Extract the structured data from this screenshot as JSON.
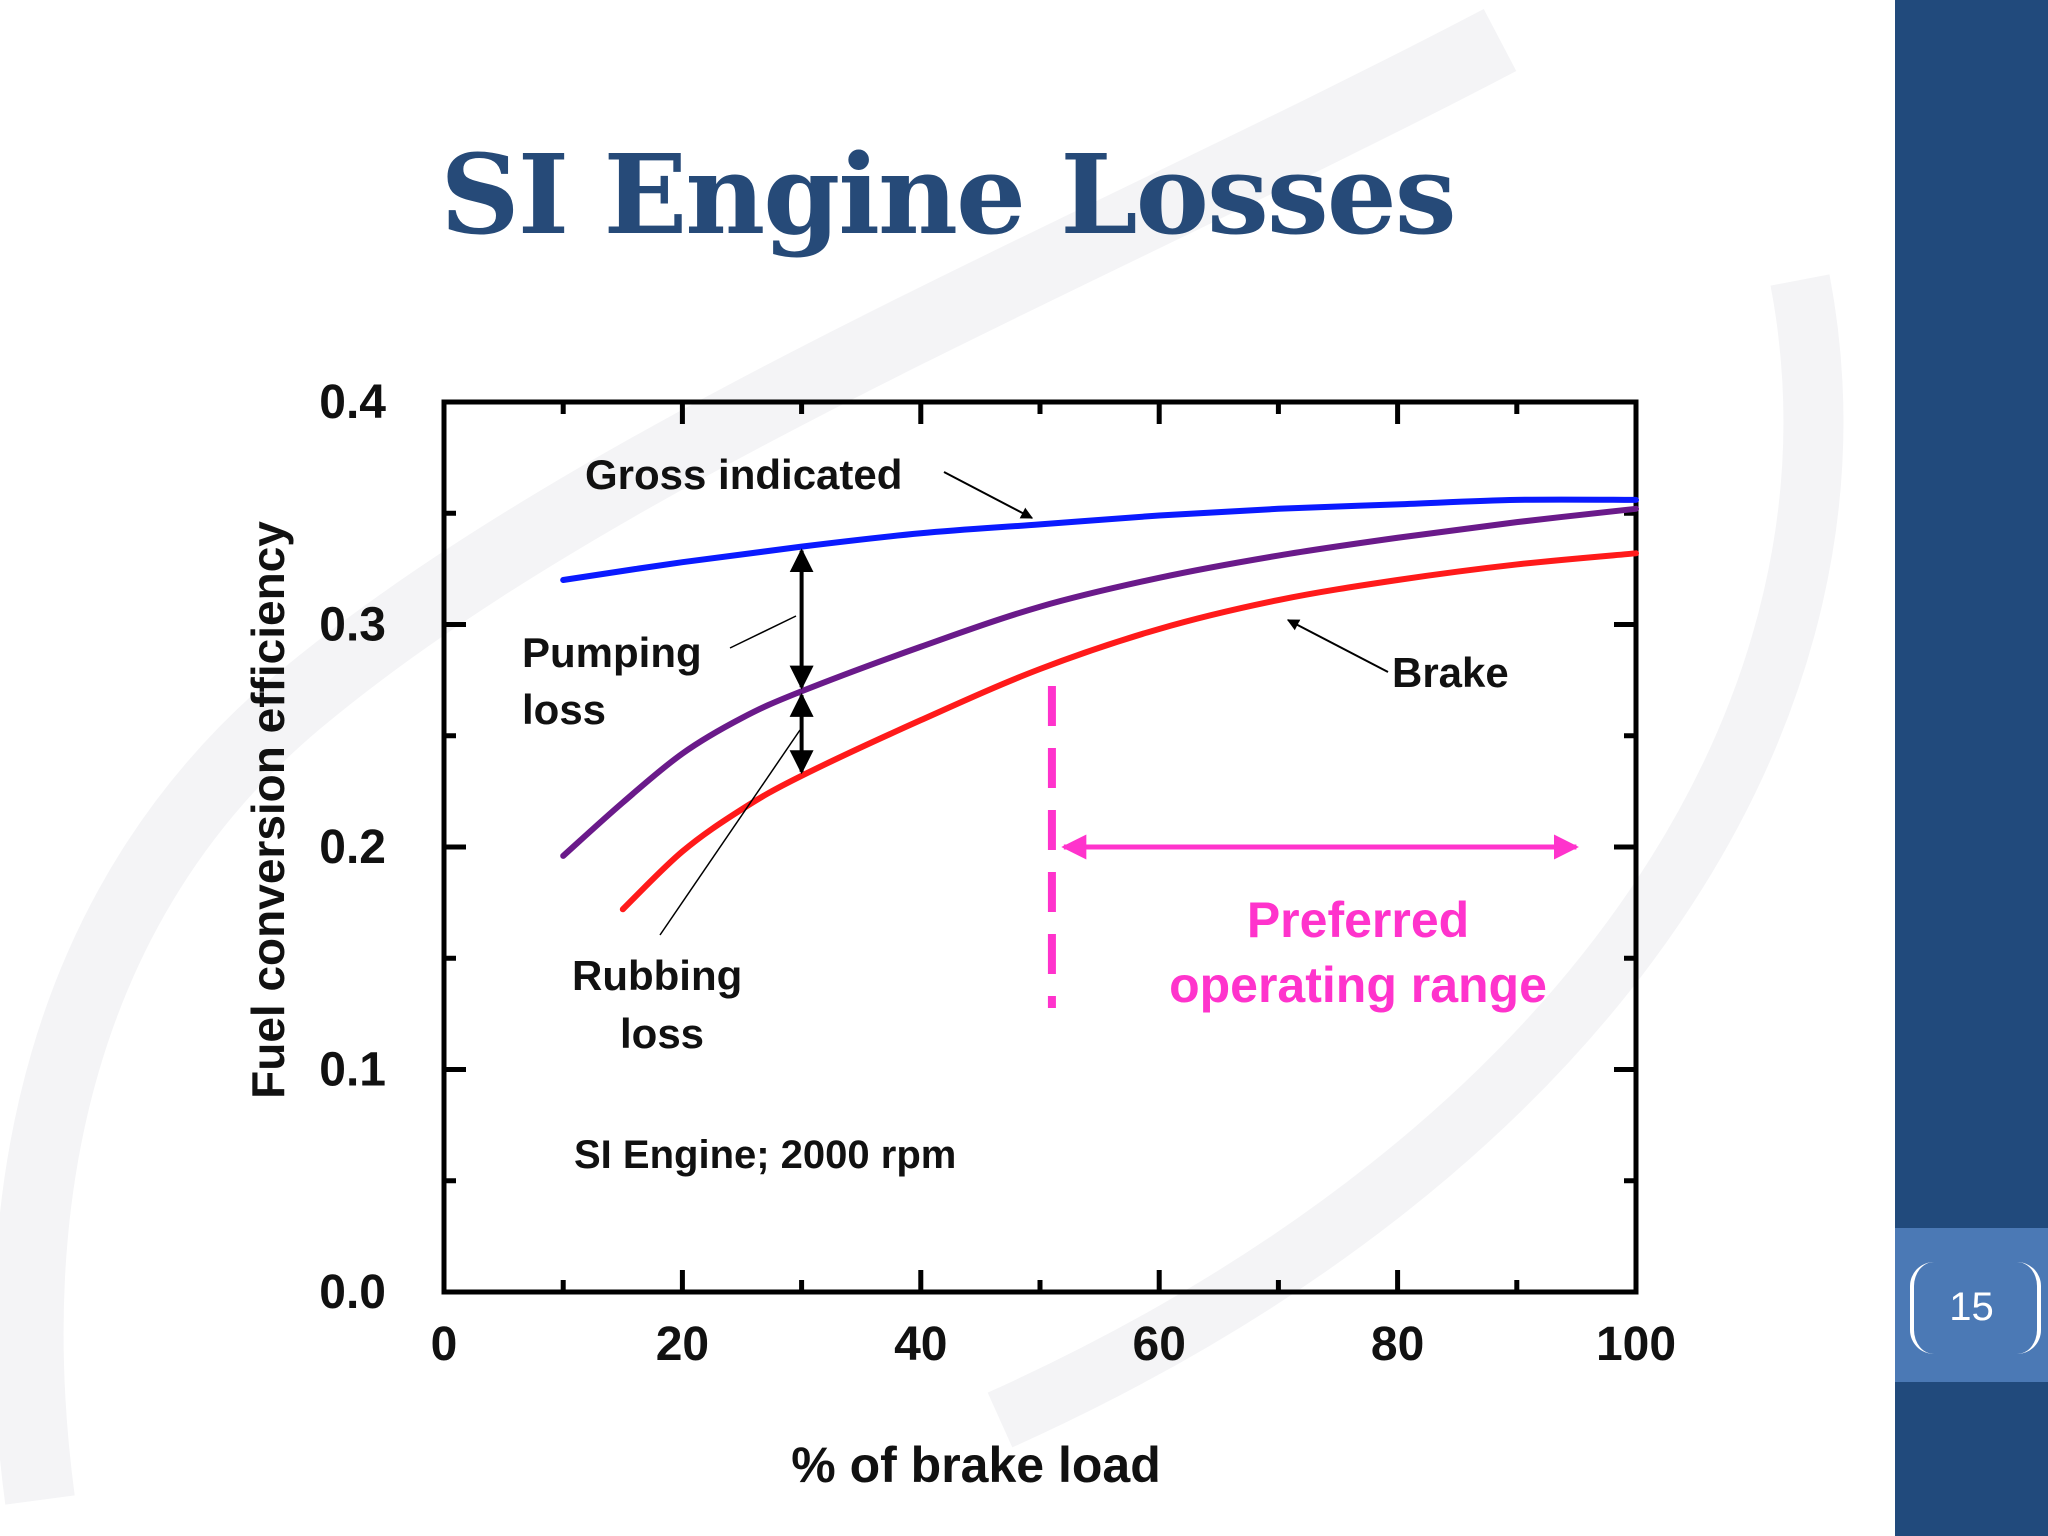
{
  "slide": {
    "title": "SI Engine Losses",
    "page_number": "15"
  },
  "colors": {
    "title": "#264a78",
    "side_band": "#214a7c",
    "page_box": "#4b79b5",
    "gross_indicated": "#0a1aff",
    "net_indicated": "#6a1a8a",
    "brake": "#ff1a1a",
    "preferred_range": "#ff33cc",
    "axes": "#000000"
  },
  "chart_data": {
    "type": "line",
    "xlabel": "% of brake load",
    "ylabel": "Fuel conversion efficiency",
    "xlim": [
      0,
      100
    ],
    "ylim": [
      0,
      0.4
    ],
    "x_ticks": [
      "0",
      "20",
      "40",
      "60",
      "80",
      "100"
    ],
    "y_ticks": [
      "0.0",
      "0.1",
      "0.2",
      "0.3",
      "0.4"
    ],
    "grid": false,
    "series": [
      {
        "name": "Gross indicated",
        "x": [
          10,
          20,
          30,
          40,
          50,
          60,
          70,
          80,
          90,
          100
        ],
        "y": [
          0.32,
          0.328,
          0.335,
          0.341,
          0.345,
          0.349,
          0.352,
          0.354,
          0.356,
          0.356
        ]
      },
      {
        "x": [
          10,
          15,
          20,
          25,
          30,
          40,
          50,
          60,
          70,
          80,
          90,
          100
        ],
        "y": [
          0.196,
          0.22,
          0.242,
          0.258,
          0.27,
          0.29,
          0.308,
          0.321,
          0.331,
          0.339,
          0.346,
          0.352
        ]
      },
      {
        "name": "Brake",
        "x": [
          15,
          20,
          25,
          30,
          40,
          50,
          60,
          70,
          80,
          90,
          100
        ],
        "y": [
          0.172,
          0.198,
          0.217,
          0.232,
          0.257,
          0.28,
          0.298,
          0.311,
          0.32,
          0.327,
          0.332
        ]
      }
    ],
    "annotations": {
      "gross_indicated_label": "Gross indicated",
      "pumping_loss_line1": "Pumping",
      "pumping_loss_line2": "loss",
      "rubbing_loss_line1": "Rubbing",
      "rubbing_loss_line2": "loss",
      "brake_label": "Brake",
      "condition": "SI Engine; 2000 rpm",
      "preferred_line1": "Preferred",
      "preferred_line2": "operating range",
      "preferred_range_x": [
        52,
        95
      ],
      "preferred_divider_x": 51,
      "loss_arrow_x": 30
    }
  }
}
